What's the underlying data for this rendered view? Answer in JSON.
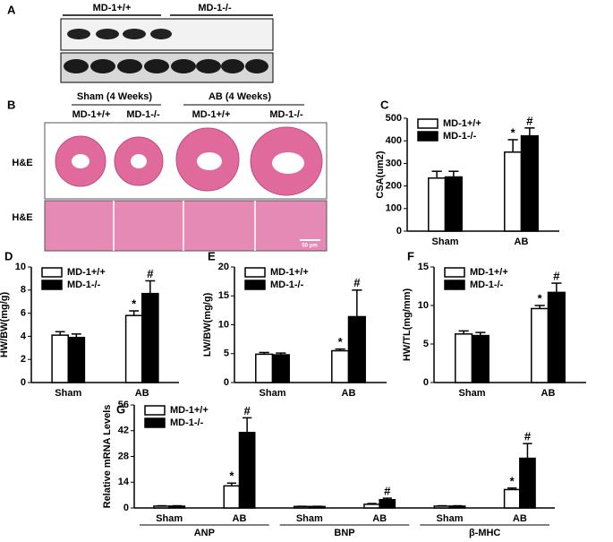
{
  "panel_a": {
    "letter": "A",
    "groups": [
      "MD-1+/+",
      "MD-1-/-"
    ]
  },
  "panel_b": {
    "letter": "B",
    "conditions": [
      "Sham (4 Weeks)",
      "AB (4 Weeks)"
    ],
    "genotypes": [
      "MD-1+/+",
      "MD-1-/-",
      "MD-1+/+",
      "MD-1-/-"
    ],
    "stains": [
      "H&E",
      "H&E"
    ],
    "scale_bar": "50 μm"
  },
  "chart_data": [
    {
      "type": "bar",
      "letter": "C",
      "ylabel": "CSA(um2)",
      "categories": [
        "Sham",
        "AB"
      ],
      "ylim": [
        0,
        500
      ],
      "yticks": [
        0,
        100,
        200,
        300,
        400,
        500
      ],
      "series": [
        {
          "name": "MD-1+/+",
          "color": "#ffffff",
          "values": [
            235,
            350
          ],
          "errors": [
            30,
            55
          ],
          "annotations": [
            null,
            "*"
          ]
        },
        {
          "name": "MD-1-/-",
          "color": "#000000",
          "values": [
            240,
            422
          ],
          "errors": [
            25,
            35
          ],
          "annotations": [
            null,
            "#"
          ]
        }
      ]
    },
    {
      "type": "bar",
      "letter": "D",
      "ylabel": "HW/BW(mg/g)",
      "categories": [
        "Sham",
        "AB"
      ],
      "ylim": [
        0,
        10
      ],
      "yticks": [
        0,
        2,
        4,
        6,
        8,
        10
      ],
      "series": [
        {
          "name": "MD-1+/+",
          "color": "#ffffff",
          "values": [
            4.1,
            5.8
          ],
          "errors": [
            0.3,
            0.4
          ],
          "annotations": [
            null,
            "*"
          ]
        },
        {
          "name": "MD-1-/-",
          "color": "#000000",
          "values": [
            3.9,
            7.7
          ],
          "errors": [
            0.3,
            1.1
          ],
          "annotations": [
            null,
            "#"
          ]
        }
      ]
    },
    {
      "type": "bar",
      "letter": "E",
      "ylabel": "LW/BW(mg/g)",
      "categories": [
        "Sham",
        "AB"
      ],
      "ylim": [
        0,
        20
      ],
      "yticks": [
        0,
        5,
        10,
        15,
        20
      ],
      "series": [
        {
          "name": "MD-1+/+",
          "color": "#ffffff",
          "values": [
            4.9,
            5.5
          ],
          "errors": [
            0.3,
            0.3
          ],
          "annotations": [
            null,
            "*"
          ]
        },
        {
          "name": "MD-1-/-",
          "color": "#000000",
          "values": [
            4.8,
            11.4
          ],
          "errors": [
            0.3,
            4.6
          ],
          "annotations": [
            null,
            "#"
          ]
        }
      ]
    },
    {
      "type": "bar",
      "letter": "F",
      "ylabel": "HW/TL(mg/mm)",
      "categories": [
        "Sham",
        "AB"
      ],
      "ylim": [
        0,
        15
      ],
      "yticks": [
        0,
        5,
        10,
        15
      ],
      "series": [
        {
          "name": "MD-1+/+",
          "color": "#ffffff",
          "values": [
            6.3,
            9.6
          ],
          "errors": [
            0.4,
            0.4
          ],
          "annotations": [
            null,
            "*"
          ]
        },
        {
          "name": "MD-1-/-",
          "color": "#000000",
          "values": [
            6.1,
            11.7
          ],
          "errors": [
            0.4,
            1.2
          ],
          "annotations": [
            null,
            "#"
          ]
        }
      ]
    },
    {
      "type": "bar",
      "letter": "G",
      "ylabel": "Relative mRNA Levels",
      "categories": [
        "Sham",
        "AB",
        "Sham",
        "AB",
        "Sham",
        "AB"
      ],
      "groups": [
        "ANP",
        "BNP",
        "β-MHC"
      ],
      "ylim": [
        0,
        56
      ],
      "yticks": [
        0,
        14,
        28,
        42,
        56
      ],
      "series": [
        {
          "name": "MD-1+/+",
          "color": "#ffffff",
          "values": [
            1,
            12,
            0.8,
            2,
            1,
            10
          ],
          "errors": [
            0.2,
            1.5,
            0.1,
            0.4,
            0.2,
            0.8
          ],
          "annotations": [
            null,
            "*",
            null,
            null,
            null,
            "*"
          ]
        },
        {
          "name": "MD-1-/-",
          "color": "#000000",
          "values": [
            1,
            41,
            0.8,
            4.5,
            1,
            27
          ],
          "errors": [
            0.2,
            8,
            0.1,
            0.8,
            0.2,
            8
          ],
          "annotations": [
            null,
            "#",
            null,
            "#",
            null,
            "#"
          ]
        }
      ]
    }
  ]
}
